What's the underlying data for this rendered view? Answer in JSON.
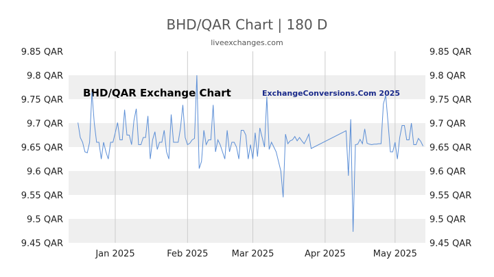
{
  "header": {
    "title": "BHD/QAR Chart | 180 D",
    "subtitle": "liveexchanges.com"
  },
  "watermarks": {
    "left": "BHD/QAR Exchange Chart",
    "right": "ExchangeConversions.Com 2025"
  },
  "colors": {
    "line": "#5b8ed6",
    "band": "#efefef",
    "grid": "#cccccc"
  },
  "chart_data": {
    "type": "line",
    "title": "BHD/QAR Chart | 180 D",
    "xlabel": "",
    "ylabel": "",
    "ylim": [
      9.45,
      9.85
    ],
    "y_ticks": [
      "9.85 QAR",
      "9.8 QAR",
      "9.75 QAR",
      "9.7 QAR",
      "9.65 QAR",
      "9.6 QAR",
      "9.55 QAR",
      "9.5 QAR",
      "9.45 QAR"
    ],
    "y_tick_values": [
      9.85,
      9.8,
      9.75,
      9.7,
      9.65,
      9.6,
      9.55,
      9.5,
      9.45
    ],
    "x_ticks": [
      "Jan 2025",
      "Feb 2025",
      "Mar 2025",
      "Apr 2025",
      "May 2025"
    ],
    "x_tick_dates": [
      "2025-01-01",
      "2025-02-01",
      "2025-03-01",
      "2025-04-01",
      "2025-05-01"
    ],
    "xlim": [
      "2024-12-12",
      "2025-05-14"
    ],
    "grid": true,
    "y_axis_both_sides": true,
    "series": [
      {
        "points": [
          [
            "2024-12-16",
            9.701
          ],
          [
            "2024-12-17",
            9.67
          ],
          [
            "2024-12-18",
            9.66
          ],
          [
            "2024-12-19",
            9.64
          ],
          [
            "2024-12-20",
            9.638
          ],
          [
            "2024-12-21",
            9.66
          ],
          [
            "2024-12-22",
            9.765
          ],
          [
            "2024-12-23",
            9.7
          ],
          [
            "2024-12-24",
            9.66
          ],
          [
            "2024-12-25",
            9.66
          ],
          [
            "2024-12-26",
            9.625
          ],
          [
            "2024-12-27",
            9.66
          ],
          [
            "2024-12-28",
            9.64
          ],
          [
            "2024-12-29",
            9.625
          ],
          [
            "2024-12-30",
            9.66
          ],
          [
            "2024-12-31",
            9.66
          ],
          [
            "2025-01-01",
            9.68
          ],
          [
            "2025-01-02",
            9.701
          ],
          [
            "2025-01-03",
            9.665
          ],
          [
            "2025-01-04",
            9.665
          ],
          [
            "2025-01-05",
            9.728
          ],
          [
            "2025-01-06",
            9.675
          ],
          [
            "2025-01-07",
            9.675
          ],
          [
            "2025-01-08",
            9.655
          ],
          [
            "2025-01-09",
            9.705
          ],
          [
            "2025-01-10",
            9.73
          ],
          [
            "2025-01-11",
            9.655
          ],
          [
            "2025-01-12",
            9.655
          ],
          [
            "2025-01-13",
            9.67
          ],
          [
            "2025-01-14",
            9.67
          ],
          [
            "2025-01-15",
            9.715
          ],
          [
            "2025-01-16",
            9.625
          ],
          [
            "2025-01-17",
            9.665
          ],
          [
            "2025-01-18",
            9.682
          ],
          [
            "2025-01-19",
            9.645
          ],
          [
            "2025-01-20",
            9.66
          ],
          [
            "2025-01-21",
            9.66
          ],
          [
            "2025-01-22",
            9.685
          ],
          [
            "2025-01-23",
            9.64
          ],
          [
            "2025-01-24",
            9.625
          ],
          [
            "2025-01-25",
            9.718
          ],
          [
            "2025-01-26",
            9.66
          ],
          [
            "2025-01-27",
            9.66
          ],
          [
            "2025-01-28",
            9.66
          ],
          [
            "2025-01-29",
            9.69
          ],
          [
            "2025-01-30",
            9.738
          ],
          [
            "2025-01-31",
            9.67
          ],
          [
            "2025-02-01",
            9.655
          ],
          [
            "2025-02-02",
            9.658
          ],
          [
            "2025-02-03",
            9.665
          ],
          [
            "2025-02-04",
            9.668
          ],
          [
            "2025-02-05",
            9.8
          ],
          [
            "2025-02-06",
            9.605
          ],
          [
            "2025-02-07",
            9.62
          ],
          [
            "2025-02-08",
            9.685
          ],
          [
            "2025-02-09",
            9.655
          ],
          [
            "2025-02-10",
            9.665
          ],
          [
            "2025-02-11",
            9.665
          ],
          [
            "2025-02-12",
            9.738
          ],
          [
            "2025-02-13",
            9.64
          ],
          [
            "2025-02-14",
            9.665
          ],
          [
            "2025-02-15",
            9.655
          ],
          [
            "2025-02-16",
            9.64
          ],
          [
            "2025-02-17",
            9.625
          ],
          [
            "2025-02-18",
            9.685
          ],
          [
            "2025-02-19",
            9.64
          ],
          [
            "2025-02-20",
            9.66
          ],
          [
            "2025-02-21",
            9.66
          ],
          [
            "2025-02-22",
            9.65
          ],
          [
            "2025-02-23",
            9.625
          ],
          [
            "2025-02-24",
            9.685
          ],
          [
            "2025-02-25",
            9.685
          ],
          [
            "2025-02-26",
            9.675
          ],
          [
            "2025-02-27",
            9.625
          ],
          [
            "2025-02-28",
            9.655
          ],
          [
            "2025-03-01",
            9.625
          ],
          [
            "2025-03-02",
            9.68
          ],
          [
            "2025-03-03",
            9.63
          ],
          [
            "2025-03-04",
            9.69
          ],
          [
            "2025-03-05",
            9.67
          ],
          [
            "2025-03-06",
            9.65
          ],
          [
            "2025-03-07",
            9.755
          ],
          [
            "2025-03-08",
            9.645
          ],
          [
            "2025-03-09",
            9.66
          ],
          [
            "2025-03-10",
            9.65
          ],
          [
            "2025-03-11",
            9.64
          ],
          [
            "2025-03-12",
            9.62
          ],
          [
            "2025-03-13",
            9.6
          ],
          [
            "2025-03-14",
            9.545
          ],
          [
            "2025-03-15",
            9.677
          ],
          [
            "2025-03-16",
            9.657
          ],
          [
            "2025-03-17",
            9.663
          ],
          [
            "2025-03-18",
            9.665
          ],
          [
            "2025-03-19",
            9.672
          ],
          [
            "2025-03-20",
            9.663
          ],
          [
            "2025-03-21",
            9.67
          ],
          [
            "2025-03-22",
            9.663
          ],
          [
            "2025-03-23",
            9.657
          ],
          [
            "2025-03-24",
            9.666
          ],
          [
            "2025-03-25",
            9.677
          ],
          [
            "2025-03-26",
            9.647
          ],
          [
            "2025-04-10",
            9.684
          ],
          [
            "2025-04-11",
            9.59
          ],
          [
            "2025-04-12",
            9.708
          ],
          [
            "2025-04-13",
            9.473
          ],
          [
            "2025-04-14",
            9.655
          ],
          [
            "2025-04-15",
            9.656
          ],
          [
            "2025-04-16",
            9.666
          ],
          [
            "2025-04-17",
            9.657
          ],
          [
            "2025-04-18",
            9.688
          ],
          [
            "2025-04-19",
            9.658
          ],
          [
            "2025-04-20",
            9.656
          ],
          [
            "2025-04-21",
            9.655
          ],
          [
            "2025-04-22",
            9.656
          ],
          [
            "2025-04-23",
            9.656
          ],
          [
            "2025-04-24",
            9.657
          ],
          [
            "2025-04-25",
            9.657
          ],
          [
            "2025-04-26",
            9.74
          ],
          [
            "2025-04-27",
            9.758
          ],
          [
            "2025-04-28",
            9.7
          ],
          [
            "2025-04-29",
            9.64
          ],
          [
            "2025-04-30",
            9.64
          ],
          [
            "2025-05-01",
            9.66
          ],
          [
            "2025-05-02",
            9.625
          ],
          [
            "2025-05-03",
            9.67
          ],
          [
            "2025-05-04",
            9.695
          ],
          [
            "2025-05-05",
            9.695
          ],
          [
            "2025-05-06",
            9.665
          ],
          [
            "2025-05-07",
            9.665
          ],
          [
            "2025-05-08",
            9.7
          ],
          [
            "2025-05-09",
            9.655
          ],
          [
            "2025-05-10",
            9.655
          ],
          [
            "2025-05-11",
            9.668
          ],
          [
            "2025-05-12",
            9.662
          ],
          [
            "2025-05-13",
            9.652
          ]
        ]
      }
    ]
  }
}
